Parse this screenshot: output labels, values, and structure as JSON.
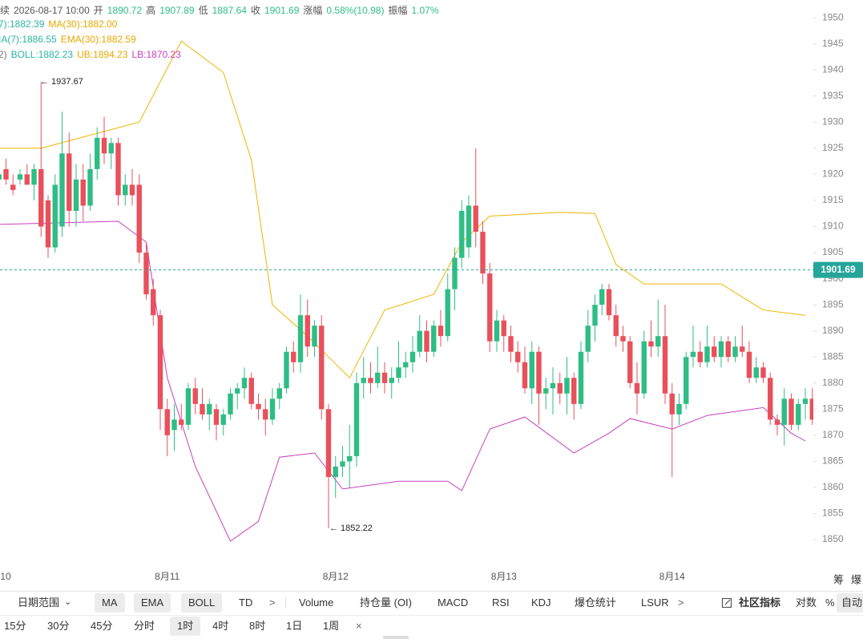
{
  "chart_data": {
    "type": "candlestick",
    "legend_lines": [
      [
        {
          "text": "续",
          "color": "#555"
        },
        {
          "text": "2026-08-17 10:00",
          "color": "#555"
        },
        {
          "text": "开",
          "color": "#555"
        },
        {
          "text": "1890.72",
          "color": "#2ebd85"
        },
        {
          "text": "高",
          "color": "#555"
        },
        {
          "text": "1907.89",
          "color": "#2ebd85"
        },
        {
          "text": "低",
          "color": "#555"
        },
        {
          "text": "1887.64",
          "color": "#2ebd85"
        },
        {
          "text": "收",
          "color": "#555"
        },
        {
          "text": "1901.69",
          "color": "#2ebd85"
        },
        {
          "text": "涨幅",
          "color": "#555"
        },
        {
          "text": "0.58%(10.98)",
          "color": "#2ebd85"
        },
        {
          "text": "振幅",
          "color": "#555"
        },
        {
          "text": "1.07%",
          "color": "#2ebd85"
        }
      ],
      [
        {
          "text": "7):1882.39",
          "color": "#2bb5a0"
        },
        {
          "text": "MA(30):1882.00",
          "color": "#e6a800"
        }
      ],
      [
        {
          "text": "IA(7):1886.55",
          "color": "#2bb5a0"
        },
        {
          "text": "EMA(30):1882.59",
          "color": "#e6a800"
        }
      ],
      [
        {
          "text": "2)",
          "color": "#777"
        },
        {
          "text": "BOLL:1882.23",
          "color": "#2bb5a0"
        },
        {
          "text": "UB:1894.23",
          "color": "#e6a800"
        },
        {
          "text": "LB:1870.23",
          "color": "#c83fbf"
        }
      ]
    ],
    "up_color": "#2ebd85",
    "down_color": "#e8505b",
    "ylim": [
      1847.4,
      1953.4
    ],
    "yticks": [
      1850,
      1855,
      1860,
      1865,
      1870,
      1875,
      1880,
      1885,
      1890,
      1895,
      1900,
      1905,
      1910,
      1915,
      1920,
      1925,
      1930,
      1935,
      1940,
      1945,
      1950
    ],
    "last_price": 1901.69,
    "last_price_color": "#26a69a",
    "annotations": [
      "← 1937.67",
      "← 1852.22"
    ],
    "categories": [
      "10",
      null,
      null,
      null,
      null,
      null,
      null,
      null,
      null,
      null,
      null,
      null,
      null,
      null,
      null,
      null,
      null,
      null,
      null,
      null,
      null,
      null,
      null,
      null,
      "8月11",
      null,
      null,
      null,
      null,
      null,
      null,
      null,
      null,
      null,
      null,
      null,
      null,
      null,
      null,
      null,
      null,
      null,
      null,
      null,
      null,
      null,
      null,
      null,
      "8月12",
      null,
      null,
      null,
      null,
      null,
      null,
      null,
      null,
      null,
      null,
      null,
      null,
      null,
      null,
      null,
      null,
      null,
      null,
      null,
      null,
      null,
      null,
      null,
      "8月13",
      null,
      null,
      null,
      null,
      null,
      null,
      null,
      null,
      null,
      null,
      null,
      null,
      null,
      null,
      null,
      null,
      null,
      null,
      null,
      null,
      null,
      null,
      null,
      "8月14",
      null,
      null,
      null,
      null,
      null,
      null,
      null,
      null,
      null,
      null,
      null,
      null,
      null,
      null,
      null,
      null,
      null,
      null,
      null,
      null
    ],
    "ohlc": [
      [
        1919,
        1921,
        1917,
        1920
      ],
      [
        1921,
        1923,
        1918,
        1919
      ],
      [
        1918,
        1920,
        1916,
        1917
      ],
      [
        1919,
        1921,
        1918,
        1920
      ],
      [
        1920,
        1922,
        1918,
        1918
      ],
      [
        1918,
        1922,
        1915,
        1921
      ],
      [
        1921,
        1937.67,
        1908,
        1910
      ],
      [
        1915,
        1916,
        1904,
        1906
      ],
      [
        1906,
        1920,
        1905,
        1918
      ],
      [
        1910,
        1932,
        1908,
        1924
      ],
      [
        1924,
        1928,
        1910,
        1913
      ],
      [
        1913,
        1922,
        1910,
        1919
      ],
      [
        1919,
        1922,
        1911,
        1914
      ],
      [
        1914,
        1924,
        1913,
        1921
      ],
      [
        1921,
        1929,
        1919,
        1927
      ],
      [
        1927,
        1931,
        1922,
        1924
      ],
      [
        1924,
        1927,
        1921,
        1926
      ],
      [
        1926,
        1927,
        1914,
        1916
      ],
      [
        1916,
        1920,
        1914,
        1918
      ],
      [
        1918,
        1921,
        1914,
        1916
      ],
      [
        1918,
        1920,
        1903,
        1905
      ],
      [
        1905,
        1907,
        1896,
        1897
      ],
      [
        1898,
        1900,
        1891,
        1893
      ],
      [
        1893,
        1894,
        1871,
        1875
      ],
      [
        1875,
        1877,
        1866,
        1870
      ],
      [
        1871,
        1876,
        1867,
        1873
      ],
      [
        1873,
        1876,
        1871,
        1872
      ],
      [
        1872,
        1880,
        1871,
        1879
      ],
      [
        1879,
        1881,
        1874,
        1876
      ],
      [
        1876,
        1879,
        1873,
        1874
      ],
      [
        1874,
        1877,
        1871,
        1876
      ],
      [
        1875,
        1876,
        1869,
        1872
      ],
      [
        1872,
        1875,
        1870,
        1874
      ],
      [
        1874,
        1879,
        1873,
        1878
      ],
      [
        1878,
        1880,
        1875,
        1879
      ],
      [
        1879,
        1883,
        1877,
        1881
      ],
      [
        1881,
        1882,
        1875,
        1876
      ],
      [
        1876,
        1878,
        1873,
        1875
      ],
      [
        1875,
        1877,
        1870,
        1873
      ],
      [
        1873,
        1879,
        1872,
        1877
      ],
      [
        1877,
        1880,
        1875,
        1879
      ],
      [
        1879,
        1887,
        1878,
        1886
      ],
      [
        1886,
        1888,
        1882,
        1884
      ],
      [
        1884,
        1897,
        1882,
        1893
      ],
      [
        1893,
        1896,
        1885,
        1887
      ],
      [
        1887,
        1892,
        1885,
        1891
      ],
      [
        1891,
        1893,
        1873,
        1875
      ],
      [
        1875,
        1876,
        1852.22,
        1862
      ],
      [
        1862,
        1866,
        1858,
        1864
      ],
      [
        1864,
        1868,
        1862,
        1865
      ],
      [
        1865,
        1872,
        1860,
        1866
      ],
      [
        1866,
        1882,
        1864,
        1880
      ],
      [
        1880,
        1885,
        1877,
        1881
      ],
      [
        1881,
        1884,
        1878,
        1880
      ],
      [
        1880,
        1887,
        1879,
        1882
      ],
      [
        1882,
        1884,
        1878,
        1880
      ],
      [
        1880,
        1883,
        1877,
        1881
      ],
      [
        1881,
        1888,
        1880,
        1883
      ],
      [
        1883,
        1886,
        1881,
        1884
      ],
      [
        1884,
        1889,
        1882,
        1886
      ],
      [
        1886,
        1893,
        1885,
        1890
      ],
      [
        1890,
        1892,
        1884,
        1886
      ],
      [
        1886,
        1892,
        1885,
        1891
      ],
      [
        1891,
        1894,
        1887,
        1889
      ],
      [
        1889,
        1901,
        1888,
        1898
      ],
      [
        1898,
        1906,
        1894,
        1904
      ],
      [
        1904,
        1915,
        1902,
        1913
      ],
      [
        1906,
        1916,
        1904,
        1914
      ],
      [
        1914,
        1925,
        1906,
        1909
      ],
      [
        1909,
        1911,
        1899,
        1901
      ],
      [
        1901,
        1903,
        1886,
        1888
      ],
      [
        1888,
        1894,
        1886,
        1892
      ],
      [
        1892,
        1893,
        1886,
        1889
      ],
      [
        1889,
        1891,
        1884,
        1886
      ],
      [
        1886,
        1888,
        1882,
        1884
      ],
      [
        1884,
        1887,
        1878,
        1879
      ],
      [
        1879,
        1888,
        1876,
        1886
      ],
      [
        1886,
        1887,
        1872,
        1878
      ],
      [
        1878,
        1881,
        1875,
        1879
      ],
      [
        1879,
        1883,
        1874,
        1880
      ],
      [
        1880,
        1882,
        1876,
        1878
      ],
      [
        1878,
        1885,
        1874,
        1881
      ],
      [
        1881,
        1882,
        1873,
        1876
      ],
      [
        1876,
        1888,
        1875,
        1886
      ],
      [
        1886,
        1894,
        1884,
        1891
      ],
      [
        1891,
        1897,
        1888,
        1895
      ],
      [
        1895,
        1899,
        1893,
        1898
      ],
      [
        1898,
        1899,
        1892,
        1893
      ],
      [
        1893,
        1895,
        1887,
        1889
      ],
      [
        1889,
        1891,
        1886,
        1888
      ],
      [
        1888,
        1889,
        1879,
        1880
      ],
      [
        1880,
        1884,
        1874,
        1878
      ],
      [
        1878,
        1890,
        1877,
        1888
      ],
      [
        1888,
        1892,
        1885,
        1887
      ],
      [
        1887,
        1896,
        1885,
        1889
      ],
      [
        1889,
        1895,
        1876,
        1878
      ],
      [
        1878,
        1880,
        1862,
        1874
      ],
      [
        1874,
        1878,
        1872,
        1876
      ],
      [
        1876,
        1886,
        1875,
        1885
      ],
      [
        1885,
        1891,
        1883,
        1886
      ],
      [
        1886,
        1888,
        1883,
        1884
      ],
      [
        1884,
        1891,
        1883,
        1887
      ],
      [
        1887,
        1889,
        1884,
        1885
      ],
      [
        1885,
        1889,
        1883,
        1888
      ],
      [
        1888,
        1889,
        1884,
        1885
      ],
      [
        1885,
        1889,
        1884,
        1887
      ],
      [
        1887,
        1891,
        1885,
        1886
      ],
      [
        1886,
        1888,
        1880,
        1881
      ],
      [
        1881,
        1885,
        1880,
        1883
      ],
      [
        1883,
        1884,
        1880,
        1881
      ],
      [
        1881,
        1882,
        1872,
        1873
      ],
      [
        1873,
        1874,
        1870,
        1872
      ],
      [
        1872,
        1879,
        1868,
        1877
      ],
      [
        1877,
        1878,
        1871,
        1872
      ],
      [
        1872,
        1877,
        1871,
        1876
      ],
      [
        1876,
        1879,
        1873,
        1877
      ],
      [
        1877,
        1879,
        1872,
        1873
      ]
    ],
    "bands": [
      {
        "color": "#f0b400",
        "x": [
          0,
          6,
          20,
          26,
          32,
          36,
          39,
          44,
          50,
          55,
          62,
          66,
          70,
          80,
          85,
          88,
          92,
          103,
          109,
          115
        ],
        "values": [
          1925,
          1925,
          1930,
          1945.5,
          1939.5,
          1922.7,
          1895,
          1889,
          1881,
          1894,
          1897,
          1907,
          1912,
          1912.7,
          1912.5,
          1902.7,
          1899,
          1899,
          1894,
          1893
        ]
      },
      {
        "color": "#c83fbf",
        "x": [
          0,
          17,
          21,
          24,
          28,
          33,
          37,
          40,
          45,
          49,
          57,
          64,
          66,
          70,
          75,
          82,
          87,
          90,
          96,
          101,
          109,
          113,
          115
        ],
        "values": [
          1910.4,
          1911,
          1907,
          1881,
          1864,
          1849.7,
          1853.5,
          1865.8,
          1866.6,
          1859.7,
          1861.2,
          1861.2,
          1859.4,
          1871.2,
          1873.5,
          1866.6,
          1870.4,
          1873.2,
          1871.2,
          1873.8,
          1875.3,
          1870.4,
          1868.9
        ]
      }
    ]
  },
  "corner_tabs": [
    "筹",
    "爆"
  ],
  "toolbar": {
    "row1": [
      "日期范围",
      "MA",
      "EMA",
      "BOLL",
      "TD",
      ">",
      "Volume",
      "持仓量 (OI)",
      "MACD",
      "RSI",
      "KDJ",
      "爆仓统计",
      "LSUR",
      ">",
      "社区指标",
      "对数",
      "%",
      "自动"
    ],
    "row2": [
      "15分",
      "30分",
      "45分",
      "分时",
      "1时",
      "4时",
      "8时",
      "1日",
      "1周",
      "×"
    ]
  }
}
